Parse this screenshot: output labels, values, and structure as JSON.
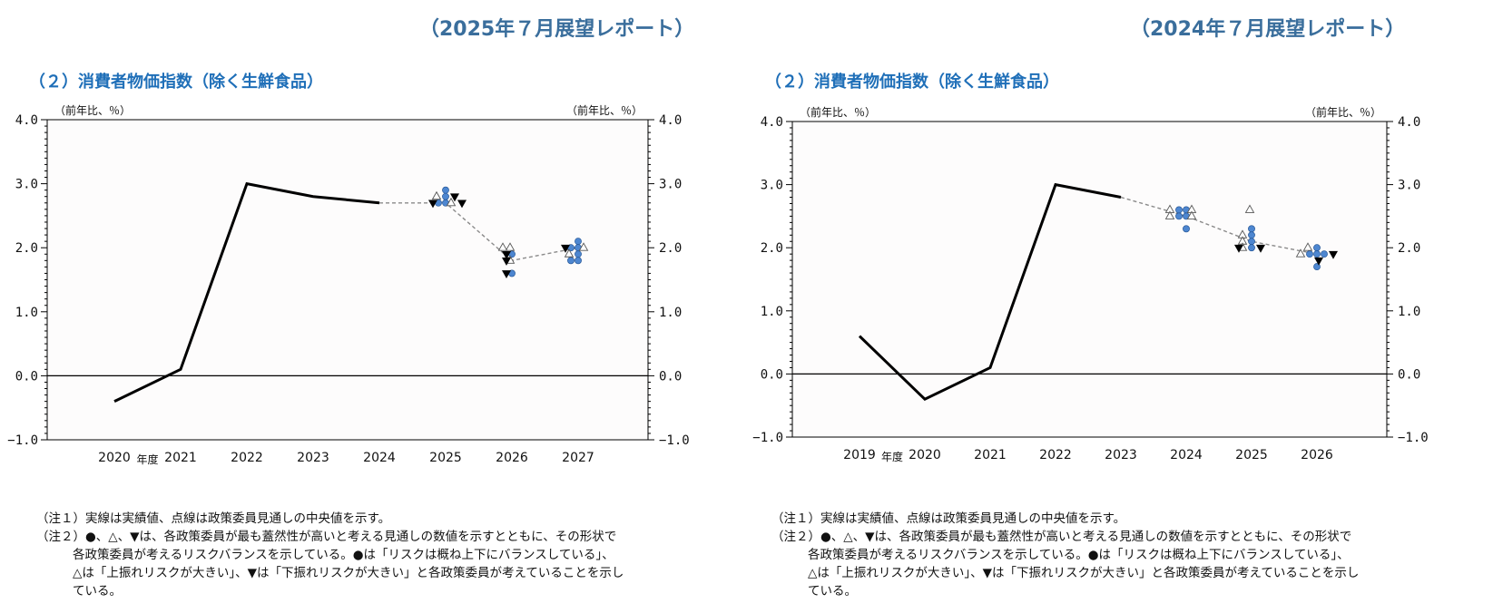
{
  "charts": [
    {
      "report_title": "（2025年７月展望レポート）",
      "heading": "（２）消費者物価指数（除く生鮮食品）",
      "notes": {
        "note1": "（注１）実線は実績値、点線は政策委員見通しの中央値を示す。",
        "note2_l1": "（注２）●、△、▼は、各政策委員が最も蓋然性が高いと考える見通しの数値を示すとともに、その形状で",
        "note2_l2": "各政策委員が考えるリスクバランスを示している。●は「リスクは概ね上下にバランスしている」、",
        "note2_l3": "△は「上振れリスクが大きい」、▼は「下振れリスクが大きい」と各政策委員が考えていることを示し",
        "note2_l4": "ている。"
      }
    },
    {
      "report_title": "（2024年７月展望レポート）",
      "heading": "（２）消費者物価指数（除く生鮮食品）",
      "notes": {
        "note1": "（注１）実線は実績値、点線は政策委員見通しの中央値を示す。",
        "note2_l1": "（注２）●、△、▼は、各政策委員が最も蓋然性が高いと考える見通しの数値を示すとともに、その形状で",
        "note2_l2": "各政策委員が考えるリスクバランスを示している。●は「リスクは概ね上下にバランスしている」、",
        "note2_l3": "△は「上振れリスクが大きい」、▼は「下振れリスクが大きい」と各政策委員が考えていることを示し",
        "note2_l4": "ている。"
      }
    }
  ],
  "chart_data": [
    {
      "type": "line",
      "title": "（２）消費者物価指数（除く生鮮食品）",
      "ylabel_left": "（前年比、％）",
      "ylabel_right": "（前年比、％）",
      "year_unit_label": "年度",
      "ylim": [
        -1.0,
        4.0
      ],
      "yticks": [
        "4.0",
        "3.0",
        "2.0",
        "1.0",
        "0.0",
        "−1.0"
      ],
      "categories": [
        "2020",
        "2021",
        "2022",
        "2023",
        "2024",
        "2025",
        "2026",
        "2027"
      ],
      "actual": [
        -0.4,
        0.1,
        3.0,
        2.8,
        2.7
      ],
      "median_forecast": [
        2.7,
        2.7,
        1.8,
        2.0
      ],
      "median_forecast_years": [
        "2024",
        "2025",
        "2026",
        "2027"
      ],
      "members": [
        {
          "year": "2025",
          "circle": [
            2.9,
            2.8,
            2.7,
            2.7
          ],
          "triangle": [
            2.7,
            2.8
          ],
          "down": [
            2.8,
            2.7,
            2.7
          ]
        },
        {
          "year": "2026",
          "circle": [
            1.6,
            1.9
          ],
          "triangle": [
            2.0,
            2.0,
            1.8
          ],
          "down": [
            1.9,
            1.8,
            1.6
          ]
        },
        {
          "year": "2027",
          "circle": [
            2.1,
            2.0,
            2.0,
            1.9,
            1.8,
            1.8
          ],
          "triangle": [
            2.0,
            1.9
          ],
          "down": [
            2.0
          ]
        }
      ],
      "colors": {
        "actual": "#000000",
        "median": "#8a8a8a",
        "circle": "#4d86d0",
        "triangle": "#ffffff",
        "down": "#000000",
        "background": "#fdfcfc"
      }
    },
    {
      "type": "line",
      "title": "（２）消費者物価指数（除く生鮮食品）",
      "ylabel_left": "（前年比、％）",
      "ylabel_right": "（前年比、％）",
      "year_unit_label": "年度",
      "ylim": [
        -1.0,
        4.0
      ],
      "yticks": [
        "4.0",
        "3.0",
        "2.0",
        "1.0",
        "0.0",
        "−1.0"
      ],
      "categories": [
        "2019",
        "2020",
        "2021",
        "2022",
        "2023",
        "2024",
        "2025",
        "2026"
      ],
      "actual": [
        0.6,
        -0.4,
        0.1,
        3.0,
        2.8
      ],
      "median_forecast": [
        2.8,
        2.5,
        2.1,
        1.9
      ],
      "median_forecast_years": [
        "2023",
        "2024",
        "2025",
        "2026"
      ],
      "members": [
        {
          "year": "2024",
          "circle": [
            2.6,
            2.6,
            2.5,
            2.5,
            2.3
          ],
          "triangle": [
            2.6,
            2.5,
            2.6,
            2.5
          ],
          "down": []
        },
        {
          "year": "2025",
          "circle": [
            2.3,
            2.2,
            2.1,
            2.0
          ],
          "triangle": [
            2.6,
            2.2,
            2.1,
            2.0
          ],
          "down": [
            2.0,
            2.0
          ]
        },
        {
          "year": "2026",
          "circle": [
            2.0,
            1.9,
            1.9,
            1.9,
            1.7
          ],
          "triangle": [
            2.0,
            1.9
          ],
          "down": [
            1.9,
            1.8
          ]
        }
      ],
      "colors": {
        "actual": "#000000",
        "median": "#8a8a8a",
        "circle": "#4d86d0",
        "triangle": "#ffffff",
        "down": "#000000",
        "background": "#fdfcfc"
      }
    }
  ]
}
